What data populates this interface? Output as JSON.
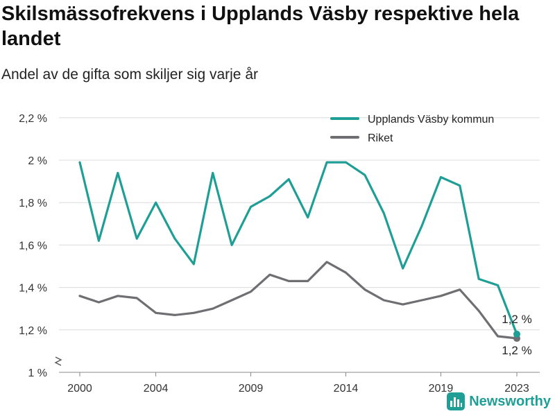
{
  "header": {
    "title": "Skilsmässofrekvens i Upplands Väsby respektive hela landet",
    "subtitle": "Andel av de gifta som skiljer sig varje år"
  },
  "brand": {
    "name": "Newsworthy",
    "color": "#1f9e96"
  },
  "chart_data": {
    "type": "line",
    "title": "Skilsmässofrekvens i Upplands Väsby respektive hela landet",
    "subtitle": "Andel av de gifta som skiljer sig varje år",
    "xlabel": "",
    "ylabel": "",
    "x": [
      2000,
      2001,
      2002,
      2003,
      2004,
      2005,
      2006,
      2007,
      2008,
      2009,
      2010,
      2011,
      2012,
      2013,
      2014,
      2015,
      2016,
      2017,
      2018,
      2019,
      2020,
      2021,
      2022,
      2023
    ],
    "x_ticks": [
      "2000",
      "2004",
      "2009",
      "2014",
      "2019",
      "2023"
    ],
    "ylim": [
      1.0,
      2.2
    ],
    "y_ticks": [
      "2,2 %",
      "2 %",
      "1,8 %",
      "1,6 %",
      "1,4 %",
      "1,2 %",
      "1 %"
    ],
    "y_tick_values": [
      2.2,
      2.0,
      1.8,
      1.6,
      1.4,
      1.2,
      1.0
    ],
    "grid": true,
    "legend_position": "top-right",
    "series": [
      {
        "name": "Upplands Väsby kommun",
        "color": "#1f9e96",
        "values": [
          1.99,
          1.62,
          1.94,
          1.63,
          1.8,
          1.63,
          1.51,
          1.94,
          1.6,
          1.78,
          1.83,
          1.91,
          1.73,
          1.99,
          1.99,
          1.93,
          1.75,
          1.49,
          1.69,
          1.92,
          1.88,
          1.44,
          1.41,
          1.18
        ],
        "end_label": "1,2 %"
      },
      {
        "name": "Riket",
        "color": "#6e6e73",
        "values": [
          1.36,
          1.33,
          1.36,
          1.35,
          1.28,
          1.27,
          1.28,
          1.3,
          1.34,
          1.38,
          1.46,
          1.43,
          1.43,
          1.52,
          1.47,
          1.39,
          1.34,
          1.32,
          1.34,
          1.36,
          1.39,
          1.29,
          1.17,
          1.16
        ],
        "end_label": "1,2 %"
      }
    ]
  }
}
